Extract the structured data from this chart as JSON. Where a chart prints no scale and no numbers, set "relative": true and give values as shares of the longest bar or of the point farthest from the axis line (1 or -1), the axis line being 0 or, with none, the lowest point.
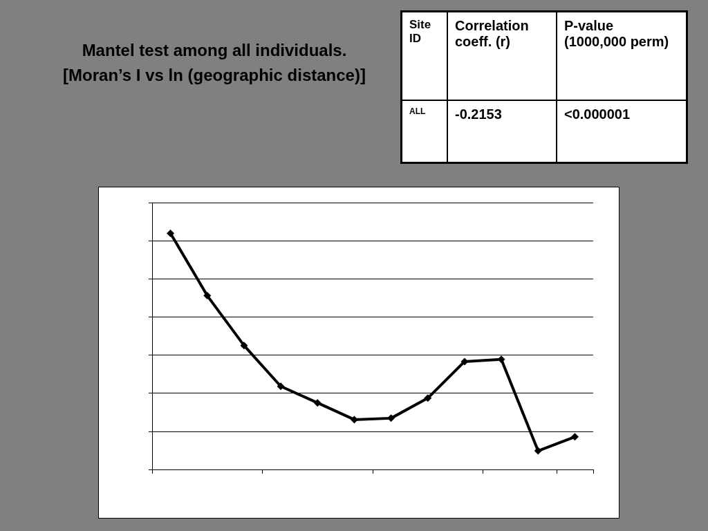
{
  "chart_data": {
    "type": "line",
    "title": "Mantel test among all individuals. [Moran’s I vs ln (geographic distance)]",
    "annotations": [
      "Site ID",
      "Correlation coeff. (r)",
      "P-value (1000,000 perm)",
      "ALL",
      "-0.2153",
      "<0.000001"
    ],
    "relative": true,
    "categories": [
      null,
      null,
      null,
      null,
      null,
      null,
      null,
      null,
      null,
      null,
      null,
      null
    ],
    "series": [
      {
        "color": "#000000",
        "values": [
          1,
          0.736,
          0.525,
          0.352,
          0.282,
          0.211,
          0.217,
          0.302,
          0.457,
          0.466,
          0.079,
          0.138
        ]
      }
    ],
    "grid": "y",
    "marker": "diamond",
    "line_style": "solid"
  }
}
